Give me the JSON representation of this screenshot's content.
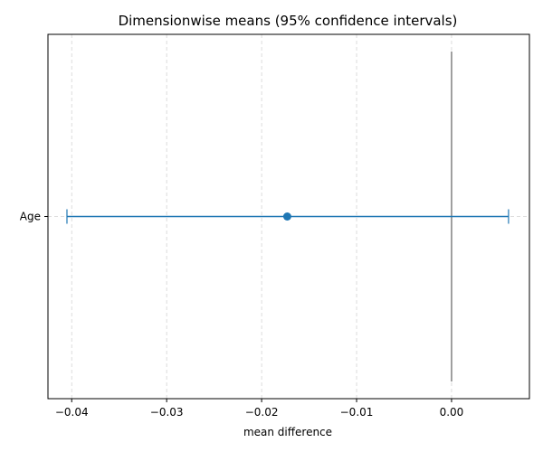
{
  "chart_data": {
    "type": "errorbar",
    "title": "Dimensionwise means (95% confidence intervals)",
    "xlabel": "mean difference",
    "ylabel": "",
    "xlim": [
      -0.0425,
      0.0082
    ],
    "xticks": [
      -0.04,
      -0.03,
      -0.02,
      -0.01,
      0.0
    ],
    "xtick_labels": [
      "−0.04",
      "−0.03",
      "−0.02",
      "−0.01",
      "0.00"
    ],
    "grid": true,
    "reference_line_x": 0.0,
    "categories": [
      "Age"
    ],
    "points": [
      {
        "category": "Age",
        "mean": -0.0173,
        "ci_low": -0.0405,
        "ci_high": 0.006
      }
    ],
    "colors": {
      "series": "#1f77b4",
      "reference_line": "#808080",
      "grid": "#d3d3d3",
      "axes": "#000000"
    }
  }
}
